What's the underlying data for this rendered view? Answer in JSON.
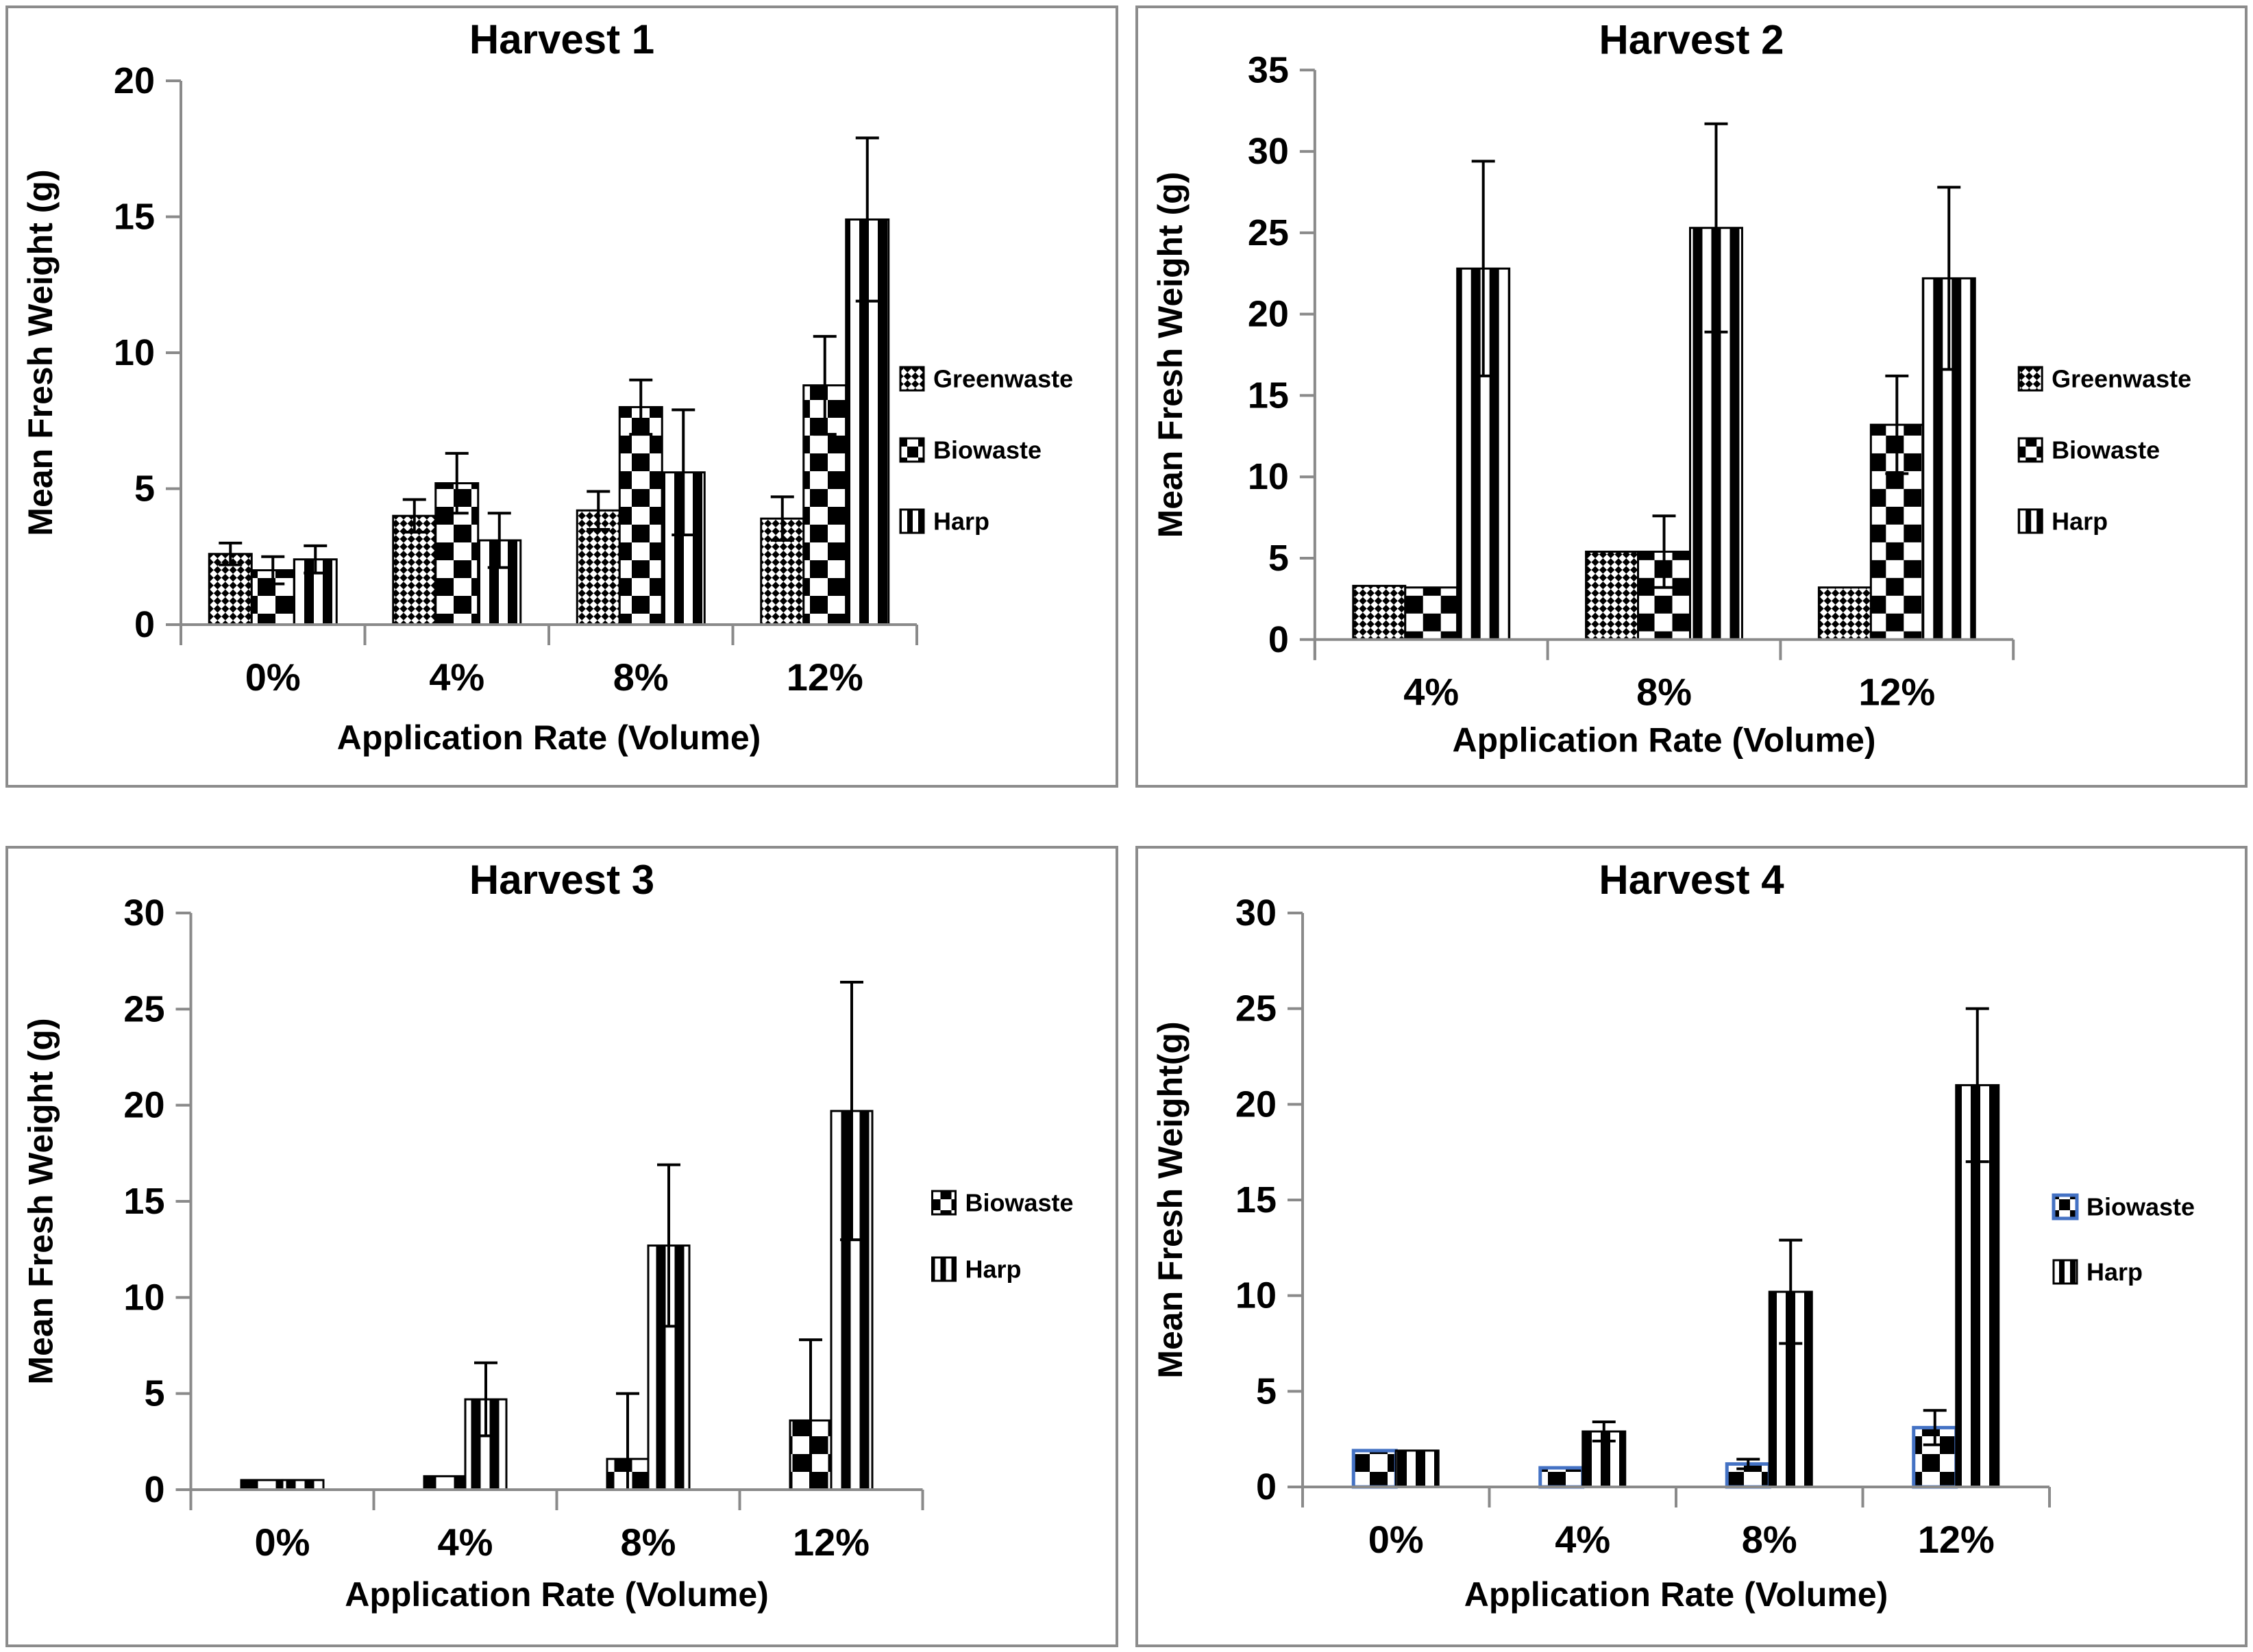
{
  "page": {
    "description": "Four panel bar chart figure, harvests 1-4, mean fresh weight by application rate",
    "background": "#ffffff"
  },
  "colors": {
    "axis": "#8a8a8a",
    "panel_border": "#8c8c8c",
    "text": "#000000",
    "bar_outline": "#000000",
    "error_bar": "#000000",
    "biowaste_accent_harvest4": "#4472c4",
    "background": "#ffffff"
  },
  "patterns": {
    "Greenwaste": "fine-diamond-checkerboard",
    "Biowaste": "checkerboard",
    "Harp": "vertical-stripes"
  },
  "chart_data": [
    {
      "id": "harvest-1",
      "type": "bar",
      "title": "Harvest 1",
      "xlabel": "Application Rate (Volume)",
      "ylabel": "Mean Fresh Weight (g)",
      "ylim": [
        0,
        20
      ],
      "ytick_step": 5,
      "grid": false,
      "error_bars": true,
      "legend_position": "right",
      "legend": [
        "Greenwaste",
        "Biowaste",
        "Harp"
      ],
      "categories": [
        "0%",
        "4%",
        "8%",
        "12%"
      ],
      "series": [
        {
          "name": "Greenwaste",
          "pattern": "fine-diamond-checkerboard",
          "values": [
            2.6,
            4.0,
            4.2,
            3.9
          ],
          "errors": [
            0.4,
            0.6,
            0.7,
            0.8
          ]
        },
        {
          "name": "Biowaste",
          "pattern": "checkerboard",
          "values": [
            2.0,
            5.2,
            8.0,
            8.8
          ],
          "errors": [
            0.5,
            1.1,
            1.0,
            1.8
          ]
        },
        {
          "name": "Harp",
          "pattern": "vertical-stripes",
          "values": [
            2.4,
            3.1,
            5.6,
            14.9
          ],
          "errors": [
            0.5,
            1.0,
            2.3,
            3.0
          ]
        }
      ]
    },
    {
      "id": "harvest-2",
      "type": "bar",
      "title": "Harvest 2",
      "xlabel": "Application Rate (Volume)",
      "ylabel": "Mean Fresh Weight (g)",
      "ylim": [
        0,
        35
      ],
      "ytick_step": 5,
      "grid": false,
      "error_bars": true,
      "legend_position": "right",
      "legend": [
        "Greenwaste",
        "Biowaste",
        "Harp"
      ],
      "categories": [
        "4%",
        "8%",
        "12%"
      ],
      "series": [
        {
          "name": "Greenwaste",
          "pattern": "fine-diamond-checkerboard",
          "values": [
            3.3,
            5.4,
            3.2
          ],
          "errors": [
            0,
            0,
            0
          ]
        },
        {
          "name": "Biowaste",
          "pattern": "checkerboard",
          "values": [
            3.2,
            5.4,
            13.2
          ],
          "errors": [
            0,
            2.2,
            3.0
          ]
        },
        {
          "name": "Harp",
          "pattern": "vertical-stripes",
          "values": [
            22.8,
            25.3,
            22.2
          ],
          "errors": [
            6.6,
            6.4,
            5.6
          ]
        }
      ]
    },
    {
      "id": "harvest-3",
      "type": "bar",
      "title": "Harvest 3",
      "xlabel": "Application Rate (Volume)",
      "ylabel": "Mean Fresh Weight (g)",
      "ylim": [
        0,
        30
      ],
      "ytick_step": 5,
      "grid": false,
      "error_bars": true,
      "legend_position": "right",
      "legend": [
        "Biowaste",
        "Harp"
      ],
      "categories": [
        "0%",
        "4%",
        "8%",
        "12%"
      ],
      "series": [
        {
          "name": "Biowaste",
          "pattern": "checkerboard",
          "values": [
            0.5,
            0.7,
            1.6,
            3.6
          ],
          "errors": [
            0,
            0,
            3.4,
            4.2
          ]
        },
        {
          "name": "Harp",
          "pattern": "vertical-stripes",
          "values": [
            0.5,
            4.7,
            12.7,
            19.7
          ],
          "errors": [
            0,
            1.9,
            4.2,
            6.7
          ]
        }
      ]
    },
    {
      "id": "harvest-4",
      "type": "bar",
      "title": "Harvest 4",
      "xlabel": "Application Rate (Volume)",
      "ylabel": "Mean Fresh Weight(g)",
      "ylim": [
        0,
        30
      ],
      "ytick_step": 5,
      "grid": false,
      "error_bars": true,
      "legend_position": "right",
      "legend": [
        "Biowaste",
        "Harp"
      ],
      "categories": [
        "0%",
        "4%",
        "8%",
        "12%"
      ],
      "series": [
        {
          "name": "Biowaste",
          "pattern": "checkerboard",
          "values": [
            1.9,
            1.0,
            1.2,
            3.1
          ],
          "errors": [
            0,
            0,
            0.25,
            0.9
          ],
          "outline": "#4472c4",
          "outline_width": 5
        },
        {
          "name": "Harp",
          "pattern": "vertical-stripes",
          "values": [
            1.9,
            2.9,
            10.2,
            21.0
          ],
          "errors": [
            0,
            0.5,
            2.7,
            4.0
          ]
        }
      ]
    }
  ]
}
